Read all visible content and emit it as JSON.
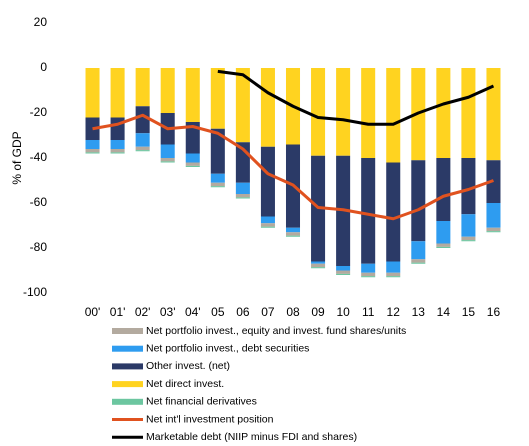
{
  "chart_data": {
    "type": "bar",
    "stacked": true,
    "y_label": "% of GDP",
    "categories": [
      "00'",
      "01'",
      "02'",
      "03'",
      "04'",
      "05",
      "06",
      "07",
      "08",
      "09",
      "10",
      "11",
      "12",
      "13",
      "14",
      "15",
      "16"
    ],
    "ylim": [
      -100,
      20
    ],
    "yticks": [
      -100,
      -80,
      -60,
      -40,
      -20,
      0,
      20
    ],
    "grid": false,
    "legend": "bottom",
    "series": [
      {
        "name": "Net portfolio invest., equity and invest. fund shares/units",
        "color": "#b3aa9f",
        "type": "bar",
        "stack_order": 3,
        "values": [
          -1.5,
          -1.5,
          -1.5,
          -1.5,
          -1.5,
          -1.5,
          -1.5,
          -1.5,
          -1.5,
          -1.5,
          -1.5,
          -1.5,
          -1.5,
          -1.5,
          -1.5,
          -1.5,
          -1.5
        ]
      },
      {
        "name": "Net portfolio invest., debt securities",
        "color": "#2e9cf0",
        "type": "bar",
        "stack_order": 2,
        "values": [
          -4,
          -4,
          -6,
          -6,
          -4,
          -4,
          -5,
          -3,
          -2,
          -1,
          -2,
          -4,
          -5,
          -8,
          -10,
          -10,
          -11
        ]
      },
      {
        "name": "Other invest. (net)",
        "color": "#2b3a67",
        "type": "bar",
        "stack_order": 1,
        "values": [
          -10,
          -10,
          -12,
          -14,
          -14,
          -20,
          -18,
          -31,
          -37,
          -47,
          -49,
          -47,
          -44,
          -36,
          -28,
          -25,
          -19
        ]
      },
      {
        "name": "Net direct invest.",
        "color": "#ffd320",
        "type": "bar",
        "stack_order": 0,
        "values": [
          -22,
          -22,
          -17,
          -20,
          -24,
          -27,
          -33,
          -35,
          -34,
          -39,
          -39,
          -40,
          -42,
          -41,
          -40,
          -40,
          -41
        ]
      },
      {
        "name": "Net financial derivatives",
        "color": "#6cc6a0",
        "type": "bar",
        "stack_order": 4,
        "values": [
          -0.5,
          -0.5,
          -0.5,
          -0.5,
          -0.5,
          -0.5,
          -0.5,
          -0.5,
          -0.5,
          -0.5,
          -0.5,
          -0.5,
          -0.5,
          -0.5,
          -0.5,
          -0.5,
          -0.5
        ]
      },
      {
        "name": "Net int'l investment position",
        "color": "#e0521f",
        "type": "line",
        "values": [
          -27,
          -25,
          -21,
          -27,
          -26,
          -29,
          -36,
          -47,
          -52,
          -62,
          -63,
          -65,
          -67,
          -63,
          -57,
          -54,
          -50
        ]
      },
      {
        "name": "Marketable debt (NIIP minus FDI and shares)",
        "color": "#000000",
        "type": "line",
        "values": [
          null,
          null,
          null,
          null,
          null,
          -1.5,
          -3,
          -11,
          -17,
          -22,
          -23,
          -25,
          -25,
          -20,
          -16,
          -13,
          -8
        ]
      }
    ]
  }
}
